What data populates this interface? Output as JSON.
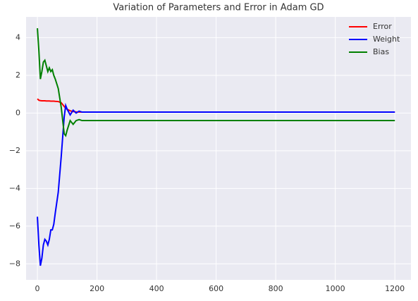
{
  "chart_data": {
    "type": "line",
    "title": "Variation of Parameters and Error in Adam GD",
    "x": [
      0,
      5,
      10,
      15,
      20,
      25,
      30,
      35,
      40,
      45,
      50,
      55,
      60,
      70,
      80,
      90,
      95,
      100,
      110,
      120,
      130,
      140,
      150,
      200,
      1200
    ],
    "series": [
      {
        "name": "Error",
        "color": "#ff0000",
        "values": [
          0.75,
          0.68,
          0.66,
          0.65,
          0.65,
          0.65,
          0.64,
          0.64,
          0.64,
          0.63,
          0.63,
          0.63,
          0.62,
          0.61,
          0.55,
          0.35,
          0.25,
          0.2,
          0.12,
          0.08,
          0.06,
          0.05,
          0.05,
          0.05,
          0.05
        ]
      },
      {
        "name": "Weight",
        "color": "#0000ff",
        "values": [
          -5.5,
          -7,
          -8.1,
          -7.7,
          -7,
          -6.7,
          -6.8,
          -7,
          -6.7,
          -6.2,
          -6.2,
          -5.9,
          -5.3,
          -4.2,
          -2.3,
          -0.2,
          0.4,
          0.2,
          -0.1,
          0.15,
          0.0,
          0.1,
          0.05,
          0.05,
          0.05
        ]
      },
      {
        "name": "Bias",
        "color": "#008000",
        "values": [
          4.5,
          3.3,
          1.8,
          2.2,
          2.7,
          2.8,
          2.5,
          2.2,
          2.4,
          2.2,
          2.3,
          2.0,
          1.8,
          1.3,
          0.3,
          -1.1,
          -1.2,
          -0.9,
          -0.4,
          -0.6,
          -0.4,
          -0.35,
          -0.4,
          -0.4,
          -0.4
        ]
      }
    ],
    "xlim": [
      -38,
      1254
    ],
    "ylim": [
      -8.85,
      5.1
    ],
    "xticks": [
      0,
      200,
      400,
      600,
      800,
      1000,
      1200
    ],
    "yticks": [
      {
        "value": -8,
        "label": "−8"
      },
      {
        "value": -6,
        "label": "−6"
      },
      {
        "value": -4,
        "label": "−4"
      },
      {
        "value": -2,
        "label": "−2"
      },
      0,
      2,
      4
    ],
    "grid": true,
    "legend": "upper right"
  }
}
